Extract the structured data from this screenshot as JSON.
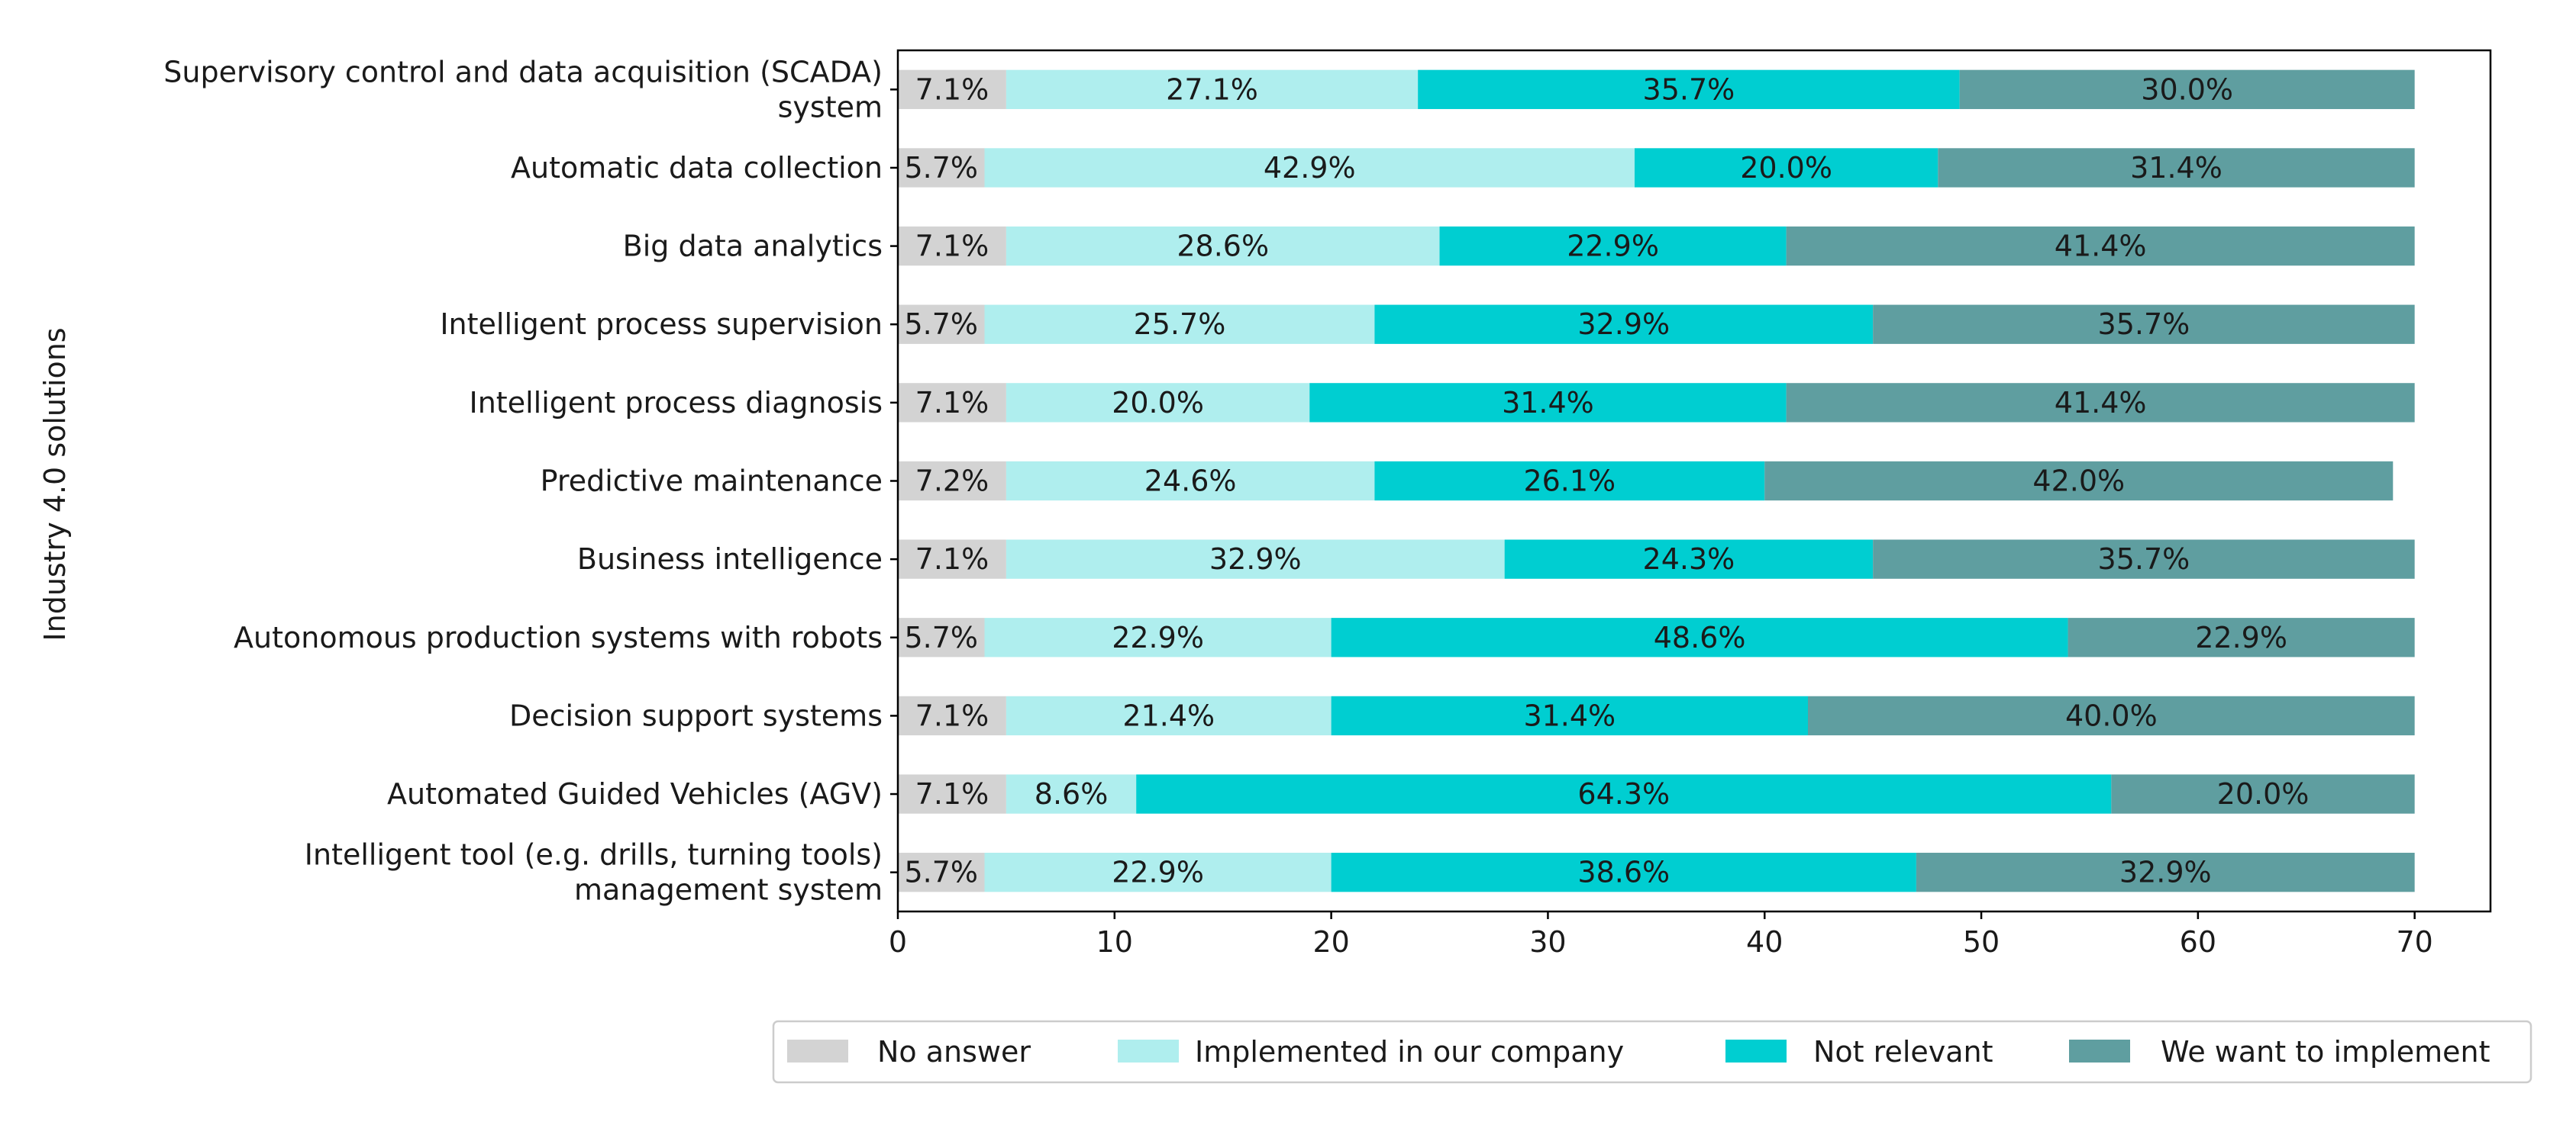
{
  "chart_data": {
    "type": "bar",
    "orientation": "horizontal",
    "stacked": true,
    "title": "",
    "xlabel": "",
    "ylabel": "Industry 4.0 solutions",
    "xlim": [
      0,
      73.5
    ],
    "xticks": [
      "0",
      "10",
      "20",
      "30",
      "40",
      "50",
      "60",
      "70"
    ],
    "grid": false,
    "legend_position": "bottom",
    "categories": [
      [
        "Supervisory control and data acquisition (SCADA)",
        "system"
      ],
      [
        "Automatic data collection"
      ],
      [
        "Big data analytics"
      ],
      [
        "Intelligent process supervision"
      ],
      [
        "Intelligent process diagnosis"
      ],
      [
        "Predictive maintenance"
      ],
      [
        "Business intelligence"
      ],
      [
        "Autonomous production systems with robots"
      ],
      [
        "Decision support systems"
      ],
      [
        "Automated Guided Vehicles (AGV)"
      ],
      [
        "Intelligent tool (e.g. drills, turning tools)",
        "management system"
      ]
    ],
    "series": [
      {
        "name": "No answer",
        "color": "#d3d3d3",
        "values": [
          5,
          4,
          5,
          4,
          5,
          5,
          5,
          4,
          5,
          5,
          4
        ],
        "labels": [
          "7.1%",
          "5.7%",
          "7.1%",
          "5.7%",
          "7.1%",
          "7.2%",
          "7.1%",
          "5.7%",
          "7.1%",
          "7.1%",
          "5.7%"
        ]
      },
      {
        "name": "Implemented in our company",
        "color": "#afeeee",
        "values": [
          19,
          30,
          20,
          18,
          14,
          17,
          23,
          16,
          15,
          6,
          16
        ],
        "labels": [
          "27.1%",
          "42.9%",
          "28.6%",
          "25.7%",
          "20.0%",
          "24.6%",
          "32.9%",
          "22.9%",
          "21.4%",
          "8.6%",
          "22.9%"
        ]
      },
      {
        "name": "Not relevant",
        "color": "#00ced1",
        "values": [
          25,
          14,
          16,
          23,
          22,
          18,
          17,
          34,
          22,
          45,
          27
        ],
        "labels": [
          "35.7%",
          "20.0%",
          "22.9%",
          "32.9%",
          "31.4%",
          "26.1%",
          "24.3%",
          "48.6%",
          "31.4%",
          "64.3%",
          "38.6%"
        ]
      },
      {
        "name": "We want to implement",
        "color": "#5f9ea0",
        "values": [
          21,
          22,
          29,
          25,
          29,
          29,
          25,
          16,
          28,
          14,
          23
        ],
        "labels": [
          "30.0%",
          "31.4%",
          "41.4%",
          "35.7%",
          "41.4%",
          "42.0%",
          "35.7%",
          "22.9%",
          "40.0%",
          "20.0%",
          "32.9%"
        ]
      }
    ]
  }
}
